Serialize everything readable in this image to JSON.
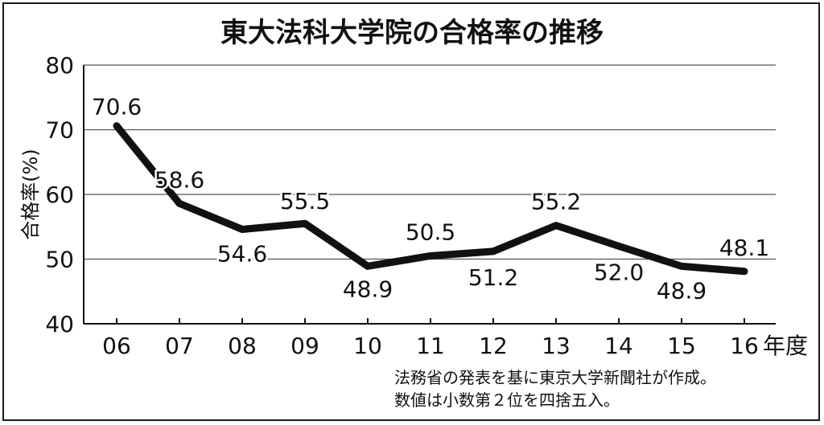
{
  "chart_data": {
    "type": "line",
    "title": "東大法科大学院の合格率の推移",
    "ylabel": "合格率(%)",
    "xlabel": "",
    "x_unit": "年度",
    "categories": [
      "06",
      "07",
      "08",
      "09",
      "10",
      "11",
      "12",
      "13",
      "14",
      "15",
      "16"
    ],
    "values": [
      70.6,
      58.6,
      54.6,
      55.5,
      48.9,
      50.5,
      51.2,
      55.2,
      52.0,
      48.9,
      48.1
    ],
    "value_labels": [
      "70.6",
      "58.6",
      "54.6",
      "55.5",
      "48.9",
      "50.5",
      "51.2",
      "55.2",
      "52.0",
      "48.9",
      "48.1"
    ],
    "yticks": [
      "80",
      "70",
      "60",
      "50",
      "40"
    ],
    "ylim": [
      40,
      80
    ],
    "grid": true,
    "line_color": "#111111",
    "grid_color": "#555555"
  },
  "notes": [
    "法務省の発表を基に東京大学新聞社が作成。",
    "数値は小数第２位を四捨五入。"
  ]
}
